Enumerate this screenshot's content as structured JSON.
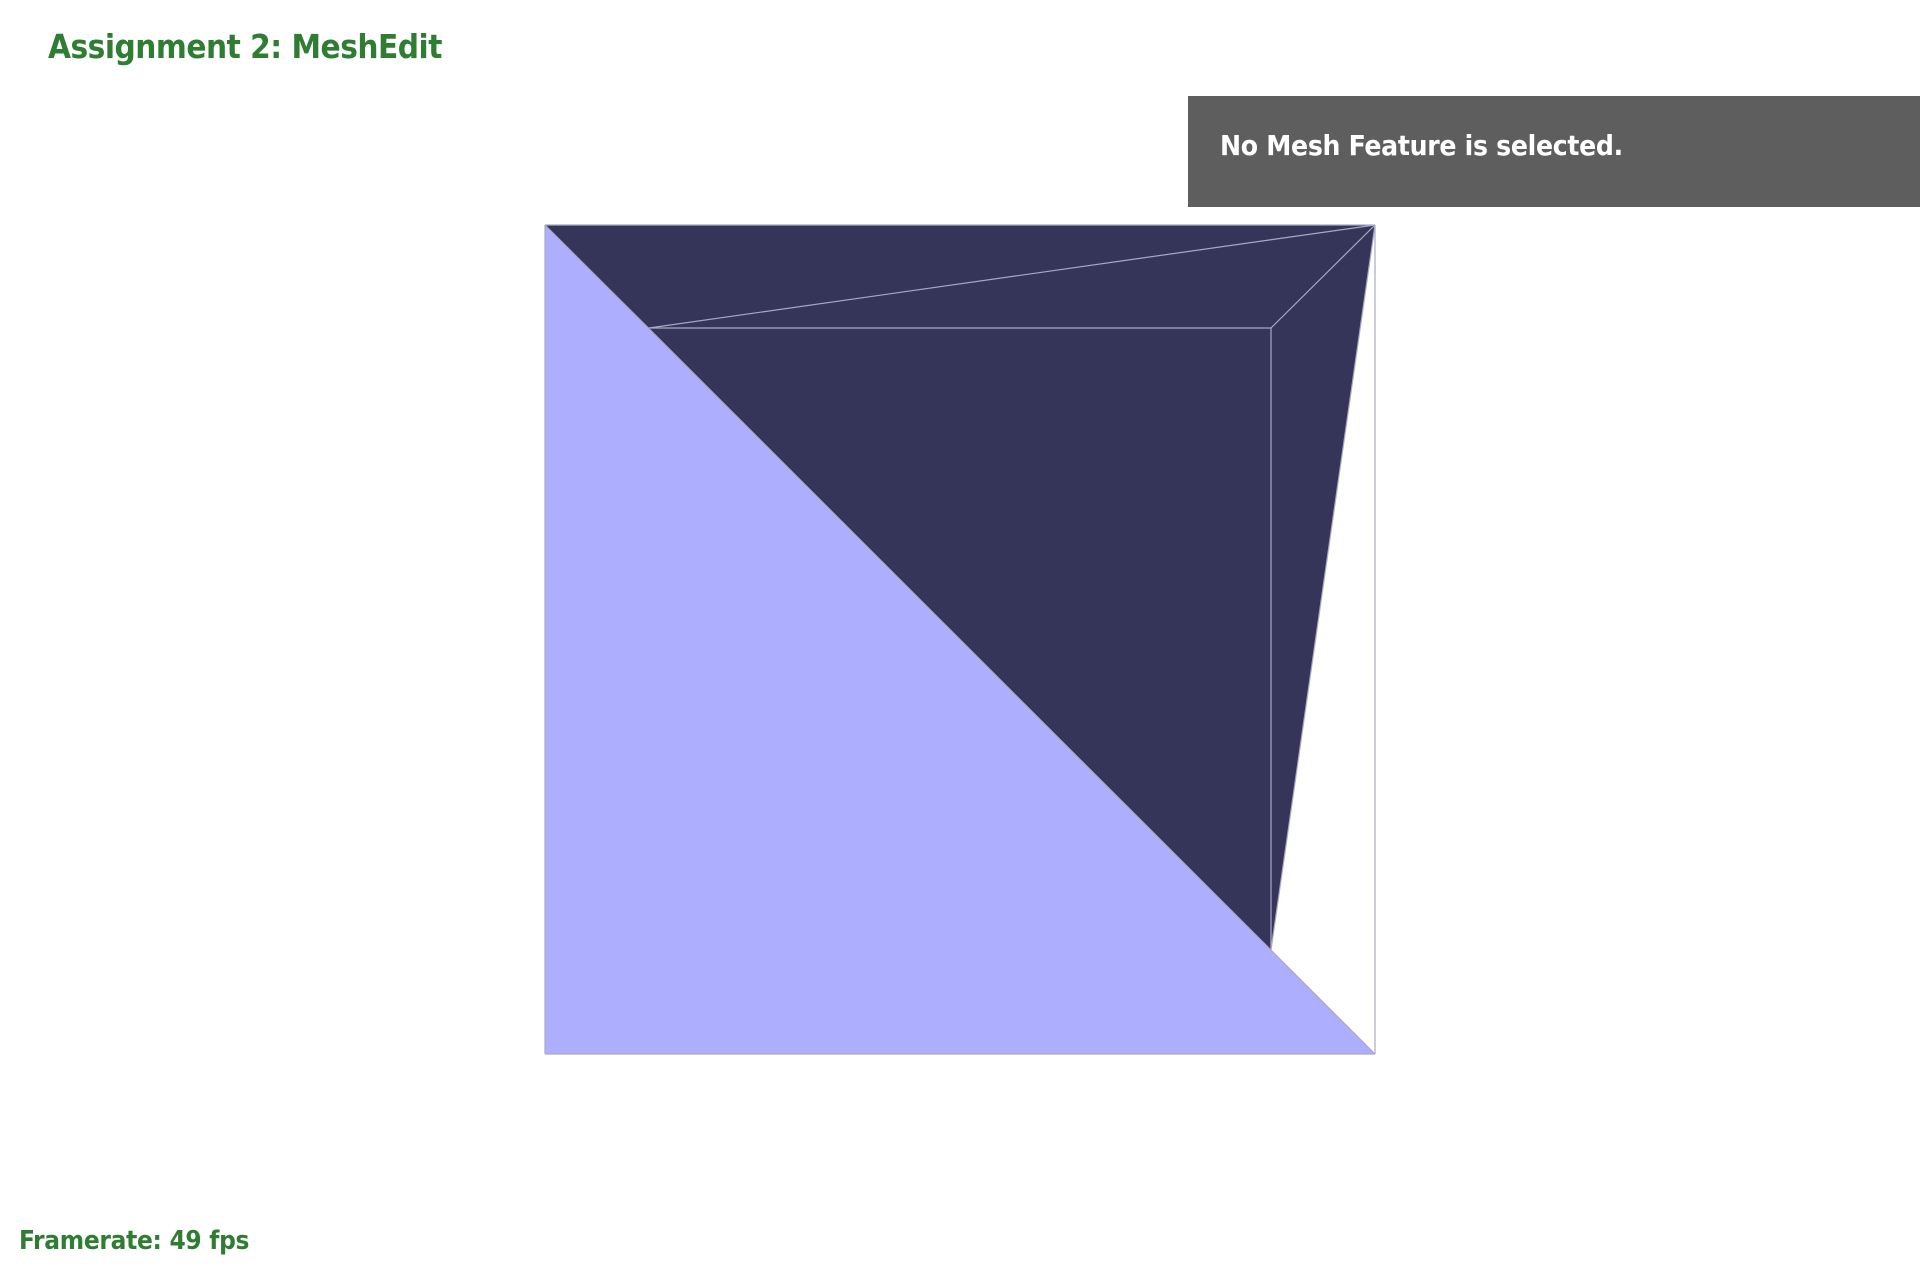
{
  "app": {
    "title": "Assignment 2: MeshEdit",
    "accent_color": "#2e7d32"
  },
  "info_panel": {
    "message": "No Mesh Feature is selected.",
    "background_color": "#5e5e5e",
    "text_color": "#ffffff"
  },
  "mesh_view": {
    "dark_face_color": "#35355a",
    "light_face_color": "#aeaeff",
    "edge_color": "#a9a9c4"
  },
  "status": {
    "framerate_text": "Framerate: 49 fps"
  }
}
